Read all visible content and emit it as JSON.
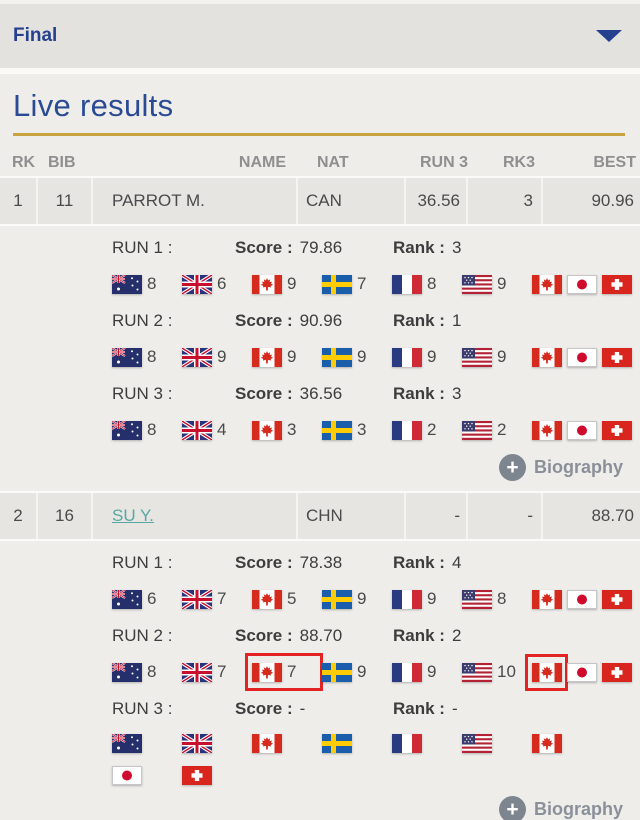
{
  "filter": {
    "label": "Final"
  },
  "title": "Live results",
  "icons": {
    "plus": "+",
    "chevron": "chevron-down"
  },
  "colors": {
    "gold": "#c9a43e",
    "blue": "#2a4a94",
    "link_teal": "#58a8a1",
    "highlight_red": "#e32424",
    "biography_gray": "#8a9099"
  },
  "table": {
    "columns": [
      {
        "key": "rk",
        "label": "RK"
      },
      {
        "key": "bib",
        "label": "BIB"
      },
      {
        "key": "name",
        "label": "NAME"
      },
      {
        "key": "nat",
        "label": "NAT"
      },
      {
        "key": "run3",
        "label": "RUN 3"
      },
      {
        "key": "rk3",
        "label": "RK3"
      },
      {
        "key": "best",
        "label": "BEST"
      }
    ],
    "rows": [
      {
        "rk": "1",
        "bib": "11",
        "name": "PARROT M.",
        "name_is_link": false,
        "nat": "CAN",
        "run3": "36.56",
        "rk3": "3",
        "best": "90.96",
        "biography_label": "Biography",
        "runs": [
          {
            "label": "RUN 1 :",
            "score_label": "Score :",
            "score": "79.86",
            "rank_label": "Rank :",
            "rank": "3",
            "wrap": false,
            "judges": [
              {
                "flag": "aus",
                "score": "8",
                "highlight": false
              },
              {
                "flag": "gbr",
                "score": "6",
                "highlight": false
              },
              {
                "flag": "can",
                "score": "9",
                "highlight": false
              },
              {
                "flag": "swe",
                "score": "7",
                "highlight": false
              },
              {
                "flag": "fra",
                "score": "8",
                "highlight": false
              },
              {
                "flag": "usa",
                "score": "9",
                "highlight": false
              },
              {
                "flag": "can",
                "score": "",
                "highlight": false
              },
              {
                "flag": "jpn",
                "score": "",
                "highlight": false
              },
              {
                "flag": "sui",
                "score": "",
                "highlight": false
              }
            ]
          },
          {
            "label": "RUN 2 :",
            "score_label": "Score :",
            "score": "90.96",
            "rank_label": "Rank :",
            "rank": "1",
            "wrap": false,
            "judges": [
              {
                "flag": "aus",
                "score": "8",
                "highlight": false
              },
              {
                "flag": "gbr",
                "score": "9",
                "highlight": false
              },
              {
                "flag": "can",
                "score": "9",
                "highlight": false
              },
              {
                "flag": "swe",
                "score": "9",
                "highlight": false
              },
              {
                "flag": "fra",
                "score": "9",
                "highlight": false
              },
              {
                "flag": "usa",
                "score": "9",
                "highlight": false
              },
              {
                "flag": "can",
                "score": "",
                "highlight": false
              },
              {
                "flag": "jpn",
                "score": "",
                "highlight": false
              },
              {
                "flag": "sui",
                "score": "",
                "highlight": false
              }
            ]
          },
          {
            "label": "RUN 3 :",
            "score_label": "Score :",
            "score": "36.56",
            "rank_label": "Rank :",
            "rank": "3",
            "wrap": false,
            "judges": [
              {
                "flag": "aus",
                "score": "8",
                "highlight": false
              },
              {
                "flag": "gbr",
                "score": "4",
                "highlight": false
              },
              {
                "flag": "can",
                "score": "3",
                "highlight": false
              },
              {
                "flag": "swe",
                "score": "3",
                "highlight": false
              },
              {
                "flag": "fra",
                "score": "2",
                "highlight": false
              },
              {
                "flag": "usa",
                "score": "2",
                "highlight": false
              },
              {
                "flag": "can",
                "score": "",
                "highlight": false
              },
              {
                "flag": "jpn",
                "score": "",
                "highlight": false
              },
              {
                "flag": "sui",
                "score": "",
                "highlight": false
              }
            ]
          }
        ]
      },
      {
        "rk": "2",
        "bib": "16",
        "name": "SU Y.",
        "name_is_link": true,
        "nat": "CHN",
        "run3": "-",
        "rk3": "-",
        "best": "88.70",
        "biography_label": "Biography",
        "runs": [
          {
            "label": "RUN 1 :",
            "score_label": "Score :",
            "score": "78.38",
            "rank_label": "Rank :",
            "rank": "4",
            "wrap": false,
            "judges": [
              {
                "flag": "aus",
                "score": "6",
                "highlight": false
              },
              {
                "flag": "gbr",
                "score": "7",
                "highlight": false
              },
              {
                "flag": "can",
                "score": "5",
                "highlight": false
              },
              {
                "flag": "swe",
                "score": "9",
                "highlight": false
              },
              {
                "flag": "fra",
                "score": "9",
                "highlight": false
              },
              {
                "flag": "usa",
                "score": "8",
                "highlight": false
              },
              {
                "flag": "can",
                "score": "",
                "highlight": false
              },
              {
                "flag": "jpn",
                "score": "",
                "highlight": false
              },
              {
                "flag": "sui",
                "score": "",
                "highlight": false
              }
            ]
          },
          {
            "label": "RUN 2 :",
            "score_label": "Score :",
            "score": "88.70",
            "rank_label": "Rank :",
            "rank": "2",
            "wrap": false,
            "judges": [
              {
                "flag": "aus",
                "score": "8",
                "highlight": false
              },
              {
                "flag": "gbr",
                "score": "7",
                "highlight": false
              },
              {
                "flag": "can",
                "score": "7",
                "highlight": true
              },
              {
                "flag": "swe",
                "score": "9",
                "highlight": false
              },
              {
                "flag": "fra",
                "score": "9",
                "highlight": false
              },
              {
                "flag": "usa",
                "score": "10",
                "highlight": false
              },
              {
                "flag": "can",
                "score": "",
                "highlight": true
              },
              {
                "flag": "jpn",
                "score": "",
                "highlight": false
              },
              {
                "flag": "sui",
                "score": "",
                "highlight": false
              }
            ]
          },
          {
            "label": "RUN 3 :",
            "score_label": "Score :",
            "score": "-",
            "rank_label": "Rank :",
            "rank": "-",
            "wrap": true,
            "judges": [
              {
                "flag": "aus",
                "score": "",
                "highlight": false
              },
              {
                "flag": "gbr",
                "score": "",
                "highlight": false
              },
              {
                "flag": "can",
                "score": "",
                "highlight": false
              },
              {
                "flag": "swe",
                "score": "",
                "highlight": false
              },
              {
                "flag": "fra",
                "score": "",
                "highlight": false
              },
              {
                "flag": "usa",
                "score": "",
                "highlight": false
              },
              {
                "flag": "can",
                "score": "",
                "highlight": false
              },
              {
                "flag": "jpn",
                "score": "",
                "highlight": false
              },
              {
                "flag": "sui",
                "score": "",
                "highlight": false
              }
            ]
          }
        ]
      }
    ]
  }
}
